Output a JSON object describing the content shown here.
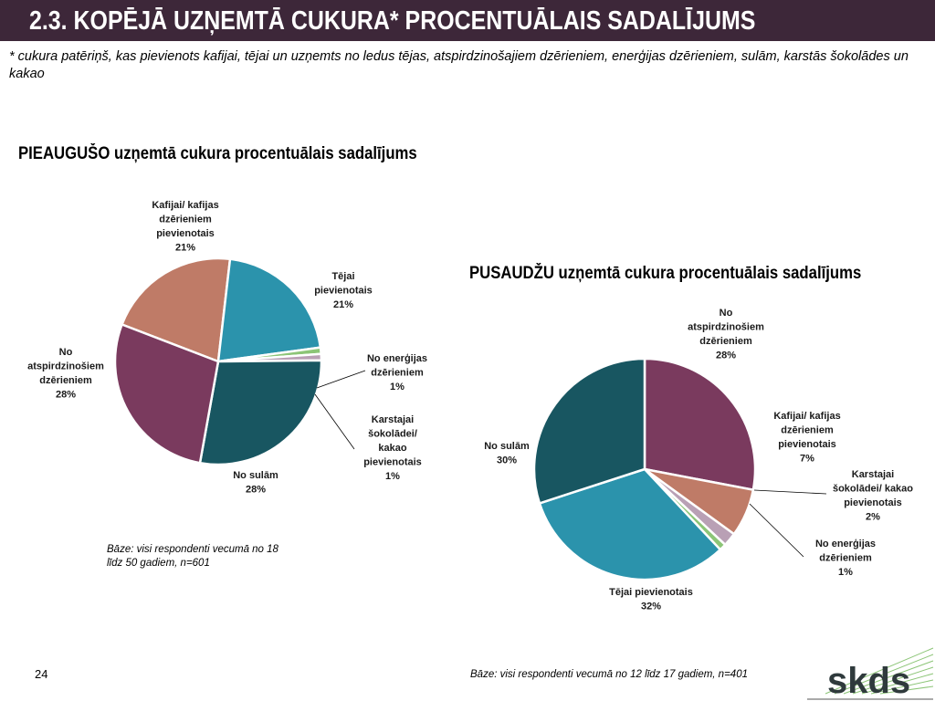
{
  "slide": {
    "title": "2.3. KOPĒJĀ UZŅEMTĀ CUKURA* PROCENTUĀLAIS SADALĪJUMS",
    "footnote": "* cukura patēriņš, kas pievienots kafijai, tējai un uzņemts no ledus tējas, atspirdzinošajiem dzērieniem, enerģijas dzērieniem, sulām, karstās šokolādes un kakao",
    "page_number": "24",
    "logo_text": "skds"
  },
  "colors": {
    "header_bg": "#3d2739",
    "kafijai": "#bf7b67",
    "tejai": "#2b93ac",
    "energijas": "#8cc577",
    "sokoladei": "#b9a0b5",
    "sulam": "#185661",
    "atspirdzinosiem": "#7a3a5e"
  },
  "chart_data": [
    {
      "type": "pie",
      "title": "PIEAUGUŠO uzņemtā cukura procentuālais sadalījums",
      "base_note": "Bāze: visi respondenti vecumā no 18 līdz 50 gadiem, n=601",
      "slices": [
        {
          "key": "kafijai",
          "label": [
            "Kafijai/ kafijas",
            "dzērieniem",
            "pievienotais",
            "21%"
          ],
          "value": 21
        },
        {
          "key": "tejai",
          "label": [
            "Tējai",
            "pievienotais",
            "21%"
          ],
          "value": 21
        },
        {
          "key": "energijas",
          "label": [
            "No enerģijas",
            "dzērieniem",
            "1%"
          ],
          "value": 1
        },
        {
          "key": "sokoladei",
          "label": [
            "Karstajai",
            "šokolādei/",
            "kakao",
            "pievienotais",
            "1%"
          ],
          "value": 1
        },
        {
          "key": "sulam",
          "label": [
            "No sulām",
            "28%"
          ],
          "value": 28
        },
        {
          "key": "atspirdzinosiem",
          "label": [
            "No",
            "atspirdzinošiem",
            "dzērieniem",
            "28%"
          ],
          "value": 28
        }
      ]
    },
    {
      "type": "pie",
      "title": "PUSAUDŽU uzņemtā cukura procentuālais sadalījums",
      "base_note": "Bāze: visi respondenti vecumā no 12 līdz 17 gadiem, n=401",
      "slices": [
        {
          "key": "atspirdzinosiem",
          "label": [
            "No",
            "atspirdzinošiem",
            "dzērieniem",
            "28%"
          ],
          "value": 28
        },
        {
          "key": "kafijai",
          "label": [
            "Kafijai/ kafijas",
            "dzērieniem",
            "pievienotais",
            "7%"
          ],
          "value": 7
        },
        {
          "key": "sokoladei",
          "label": [
            "Karstajai",
            "šokolādei/ kakao",
            "pievienotais",
            "2%"
          ],
          "value": 2
        },
        {
          "key": "energijas",
          "label": [
            "No enerģijas",
            "dzērieniem",
            "1%"
          ],
          "value": 1
        },
        {
          "key": "tejai",
          "label": [
            "Tējai pievienotais",
            "32%"
          ],
          "value": 32
        },
        {
          "key": "sulam",
          "label": [
            "No sulām",
            "30%"
          ],
          "value": 30
        }
      ]
    }
  ]
}
